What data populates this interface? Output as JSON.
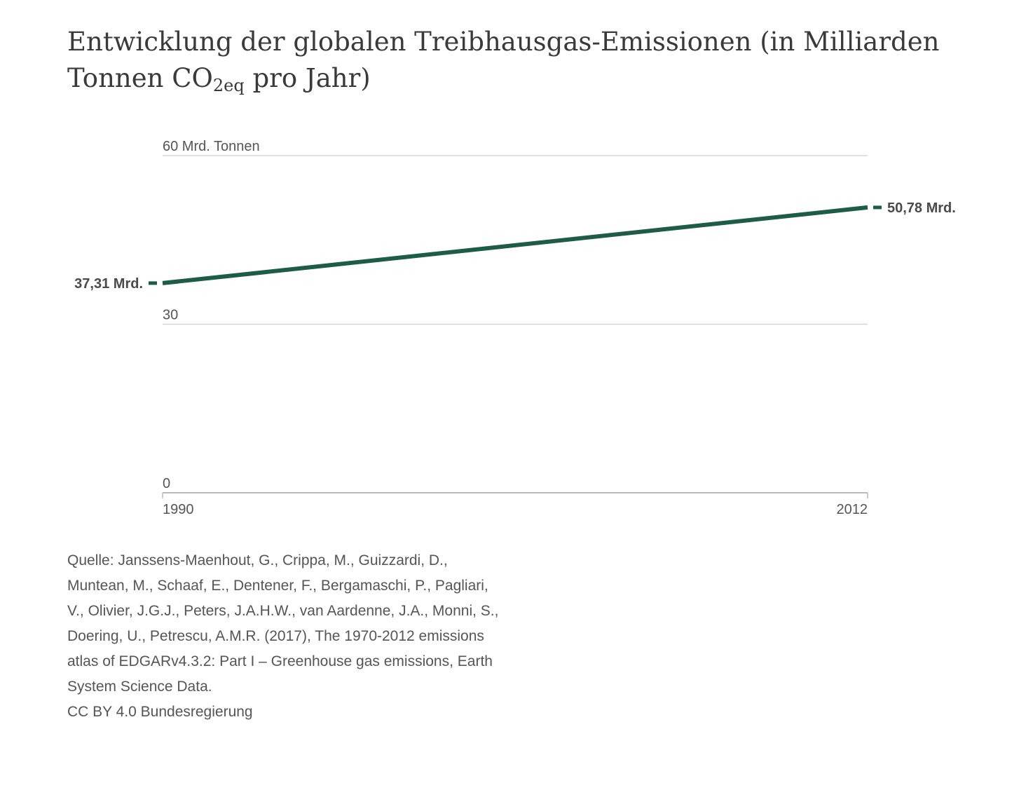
{
  "title": {
    "main": "Entwicklung der globalen Treibhausgas-Emissionen (in Milliarden Tonnen CO",
    "subscript": "2eq",
    "tail": " pro Jahr)"
  },
  "chart_data": {
    "type": "line",
    "title": "Entwicklung der globalen Treibhausgas-Emissionen (in Milliarden Tonnen CO2eq pro Jahr)",
    "x": [
      1990,
      2012
    ],
    "series": [
      {
        "values": [
          37.31,
          50.78
        ]
      }
    ],
    "ylim": [
      0,
      60
    ],
    "xlim": [
      1990,
      2012
    ],
    "y_ticks": [
      {
        "value": 0,
        "label": "0"
      },
      {
        "value": 30,
        "label": "30"
      },
      {
        "value": 60,
        "label": "60 Mrd. Tonnen"
      }
    ],
    "x_ticks": [
      {
        "value": 1990,
        "label": "1990"
      },
      {
        "value": 2012,
        "label": "2012"
      }
    ],
    "annotations": {
      "start": "37,31 Mrd.",
      "end": "50,78 Mrd."
    },
    "grid": true,
    "colors": {
      "line": "#1f5c45",
      "grid": "#d6d6d6",
      "axis": "#bbbbbb"
    }
  },
  "source": {
    "lines": [
      "Quelle: Janssens-Maenhout, G., Crippa, M., Guizzardi, D.,",
      "Muntean, M., Schaaf, E., Dentener, F., Bergamaschi, P., Pagliari,",
      "V., Olivier, J.G.J., Peters, J.A.H.W., van Aardenne, J.A., Monni, S.,",
      "Doering, U., Petrescu, A.M.R. (2017), The 1970-2012 emissions",
      "atlas of EDGARv4.3.2: Part I – Greenhouse gas emissions, Earth",
      "System Science Data."
    ],
    "license": "CC BY 4.0 Bundesregierung"
  }
}
